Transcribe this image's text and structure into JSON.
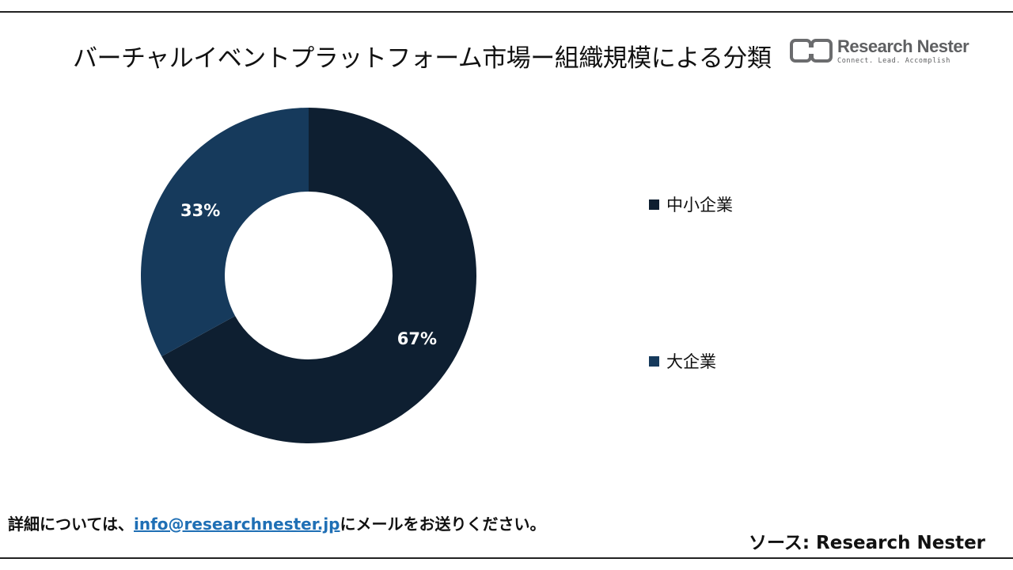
{
  "title": "バーチャルイベントプラットフォーム市場ー組織規模による分類",
  "logo": {
    "name": "Research Nester",
    "tagline": "Connect. Lead. Accomplish"
  },
  "chart_data": {
    "type": "pie",
    "subtype": "donut",
    "categories": [
      "中小企業",
      "大企業"
    ],
    "values": [
      67,
      33
    ],
    "data_labels": [
      "67%",
      "33%"
    ],
    "colors": [
      "#0e1f31",
      "#163a5c"
    ],
    "legend_position": "right"
  },
  "footer": {
    "prefix": "詳細については、",
    "email": "info@researchnester.jp",
    "suffix": "にメールをお送りください。"
  },
  "source": "ソース: Research Nester"
}
